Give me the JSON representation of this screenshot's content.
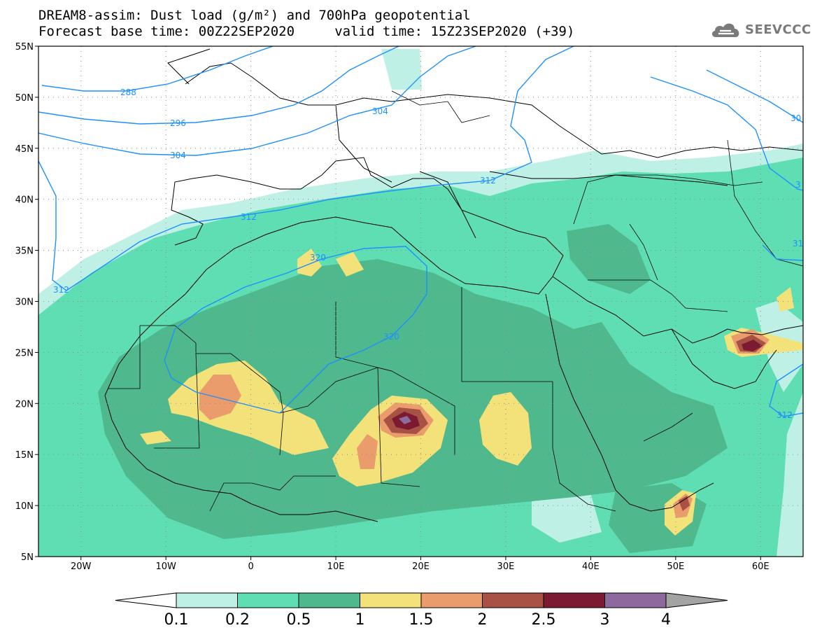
{
  "title_line1": "DREAM8-assim: Dust load (g/m²) and 700hPa geopotential",
  "title_line2": "Forecast base time: 00Z22SEP2020     valid time: 15Z23SEP2020 (+39)",
  "logo": {
    "text": "SEEVCCC",
    "icon": "cloud-icon",
    "color": "#7a7a7a"
  },
  "map": {
    "lon_range": [
      -25,
      65
    ],
    "lat_range": [
      5,
      55
    ],
    "lat_ticks": [
      {
        "value": 55,
        "label": "55N"
      },
      {
        "value": 50,
        "label": "50N"
      },
      {
        "value": 45,
        "label": "45N"
      },
      {
        "value": 40,
        "label": "40N"
      },
      {
        "value": 35,
        "label": "35N"
      },
      {
        "value": 30,
        "label": "30N"
      },
      {
        "value": 25,
        "label": "25N"
      },
      {
        "value": 20,
        "label": "20N"
      },
      {
        "value": 15,
        "label": "15N"
      },
      {
        "value": 10,
        "label": "10N"
      },
      {
        "value": 5,
        "label": "5N"
      }
    ],
    "lon_ticks": [
      {
        "value": -20,
        "label": "20W"
      },
      {
        "value": -10,
        "label": "10W"
      },
      {
        "value": 0,
        "label": "0"
      },
      {
        "value": 10,
        "label": "10E"
      },
      {
        "value": 20,
        "label": "20E"
      },
      {
        "value": 30,
        "label": "30E"
      },
      {
        "value": 40,
        "label": "40E"
      },
      {
        "value": 50,
        "label": "50E"
      },
      {
        "value": 60,
        "label": "60E"
      }
    ],
    "contour_color": "#1e90ff",
    "contour_labels": [
      "288",
      "296",
      "304",
      "304",
      "312",
      "312",
      "312",
      "320",
      "320",
      "312",
      "30",
      "3",
      "31"
    ]
  },
  "colorbar": {
    "colors": [
      "#bff0e6",
      "#5fdeb3",
      "#4fb88c",
      "#f3e27a",
      "#ea9c6c",
      "#a85245",
      "#7b1a31",
      "#8c6a9e",
      "#a3a3a3"
    ],
    "labels": [
      "0.1",
      "0.2",
      "0.5",
      "1",
      "1.5",
      "2",
      "2.5",
      "3",
      "4"
    ]
  }
}
